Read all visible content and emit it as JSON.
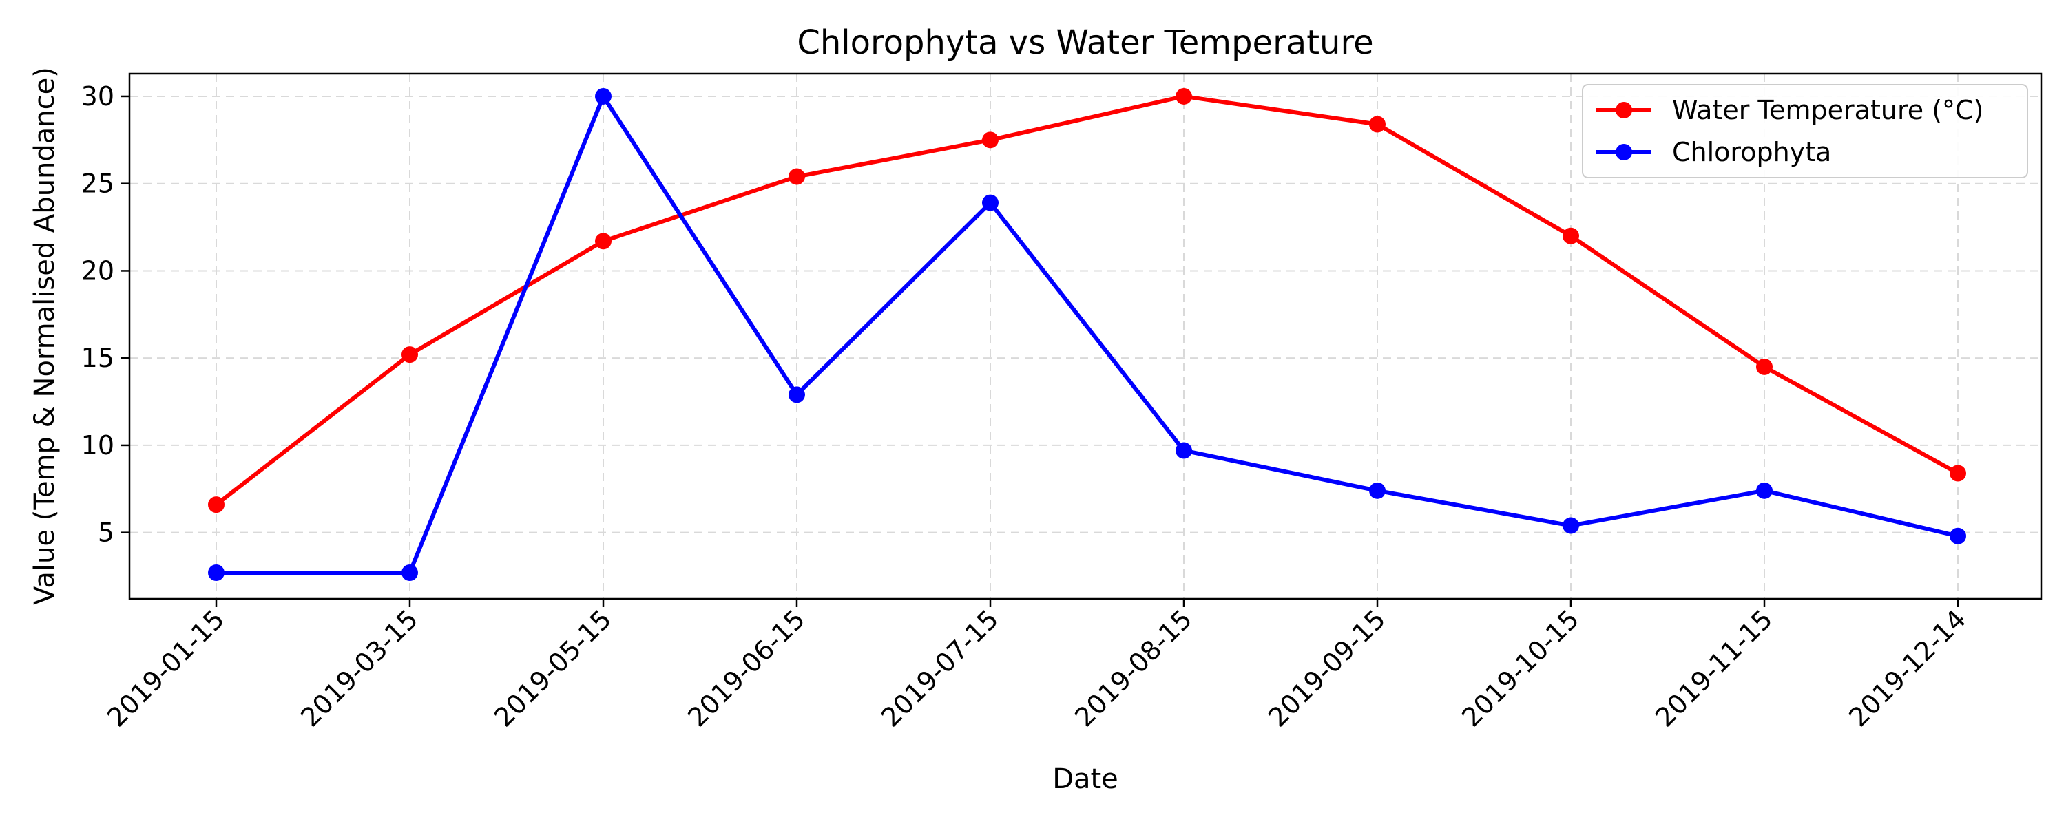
{
  "chart_data": {
    "type": "line",
    "title": "Chlorophyta vs Water Temperature",
    "xlabel": "Date",
    "ylabel": "Value (Temp & Normalised Abundance)",
    "x": [
      "2019-01-15",
      "2019-03-15",
      "2019-05-15",
      "2019-06-15",
      "2019-07-15",
      "2019-08-15",
      "2019-09-15",
      "2019-10-15",
      "2019-11-15",
      "2019-12-14"
    ],
    "ylim": [
      1.2,
      31.3
    ],
    "yticks": [
      5,
      10,
      15,
      20,
      25,
      30
    ],
    "grid": true,
    "legend_position": "top-right",
    "series": [
      {
        "name": "Water Temperature (°C)",
        "color": "#ff0000",
        "values": [
          6.6,
          15.2,
          21.7,
          25.4,
          27.5,
          30.0,
          28.4,
          22.0,
          14.5,
          8.4
        ]
      },
      {
        "name": "Chlorophyta",
        "color": "#0000ff",
        "values": [
          2.7,
          2.7,
          30.0,
          12.9,
          23.9,
          9.7,
          7.4,
          5.4,
          7.4,
          4.8
        ]
      }
    ]
  }
}
